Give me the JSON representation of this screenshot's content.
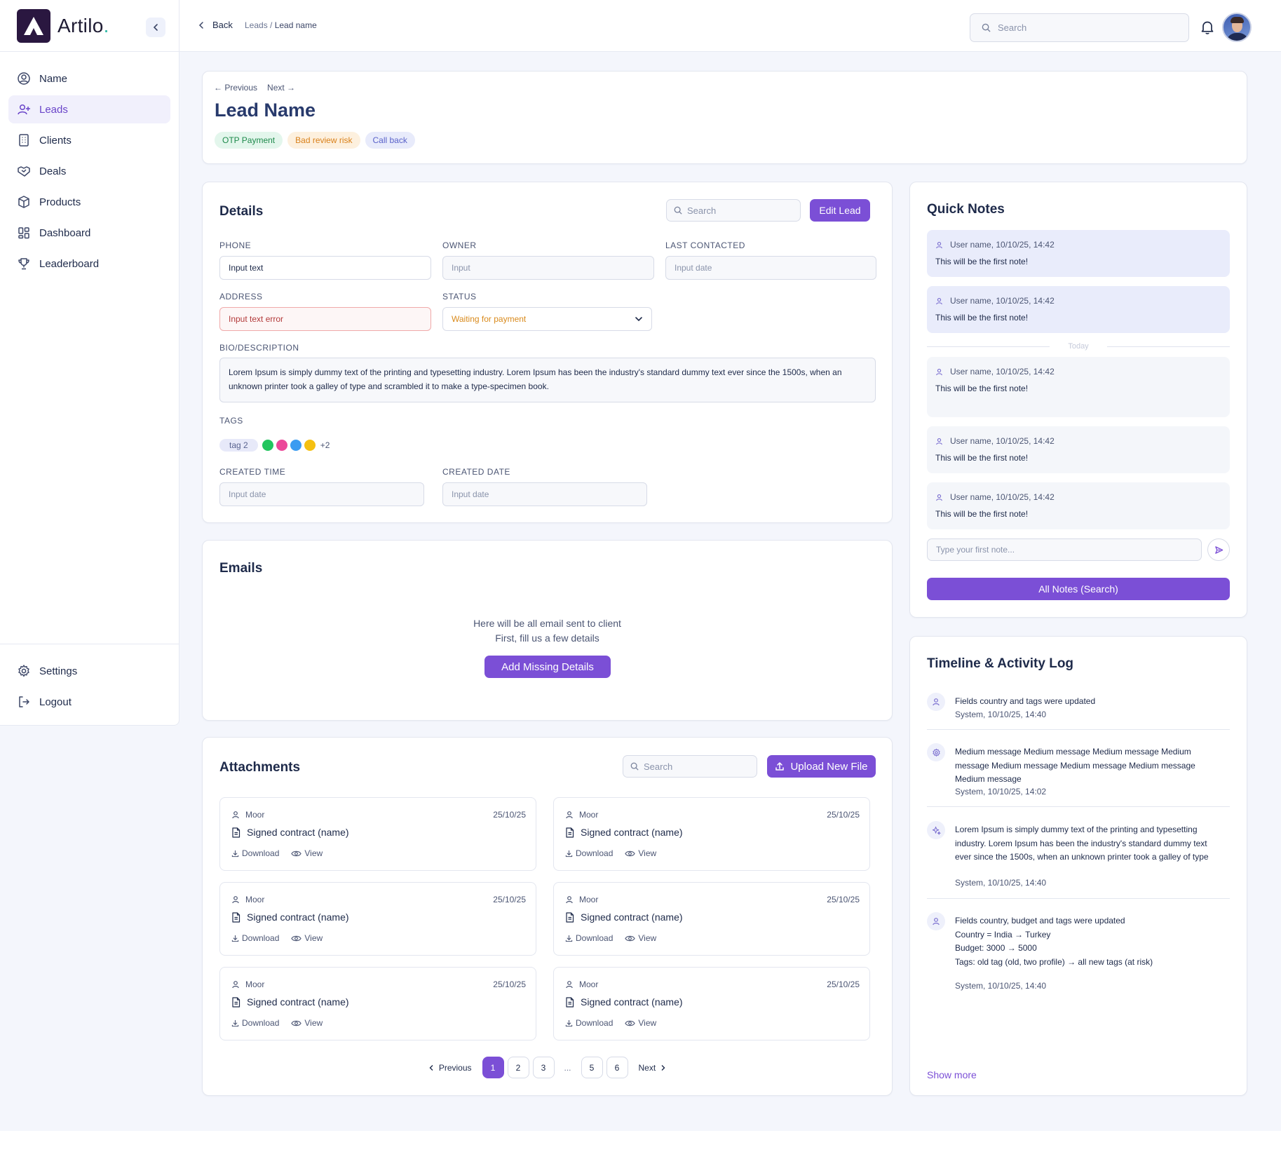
{
  "brand": {
    "name": "Artilo",
    "dot": "."
  },
  "sidebar": {
    "items": [
      {
        "label": "Name",
        "icon": "user-circle-icon"
      },
      {
        "label": "Leads",
        "icon": "user-plus-icon"
      },
      {
        "label": "Clients",
        "icon": "building-icon"
      },
      {
        "label": "Deals",
        "icon": "handshake-icon"
      },
      {
        "label": "Products",
        "icon": "box-icon"
      },
      {
        "label": "Dashboard",
        "icon": "grid-icon"
      },
      {
        "label": "Leaderboard",
        "icon": "trophy-icon"
      }
    ],
    "bottom": [
      {
        "label": "Settings",
        "icon": "gear-icon"
      },
      {
        "label": "Logout",
        "icon": "logout-icon"
      }
    ]
  },
  "header": {
    "back_label": "Back",
    "breadcrumb_parent": "Leads / ",
    "breadcrumb_current": "Lead name",
    "search_placeholder": "Search"
  },
  "lead": {
    "prev_label": "← Previous",
    "next_label": "Next →",
    "title": "Lead Name",
    "badges": [
      {
        "label": "OTP Payment",
        "bg": "#e3f6ec",
        "fg": "#1f8a4c"
      },
      {
        "label": "Bad review risk",
        "bg": "#fdf0de",
        "fg": "#d9801a"
      },
      {
        "label": "Call back",
        "bg": "#e8ebfb",
        "fg": "#5a62c9"
      }
    ]
  },
  "details": {
    "title": "Details",
    "search_placeholder": "Search",
    "edit_label": "Edit Lead",
    "phone_label": "PHONE",
    "phone_value": "Input text",
    "owner_label": "OWNER",
    "owner_placeholder": "Input",
    "last_contacted_label": "LAST CONTACTED",
    "last_contacted_placeholder": "Input date",
    "address_label": "ADDRESS",
    "address_value": "Input text error",
    "status_label": "STATUS",
    "status_value": "Waiting for payment",
    "bio_label": "BIO/DESCRIPTION",
    "bio_text": "Lorem Ipsum is simply dummy text of the printing and typesetting industry. Lorem Ipsum has been the industry's standard dummy text ever since the 1500s, when an unknown printer took a galley of type and scrambled it to make a type-specimen book.",
    "tags_label": "TAGS",
    "tag_pill": "tag 2",
    "tag_colors": [
      "#22c55e",
      "#ec4899",
      "#3b9cf1",
      "#f5c011"
    ],
    "tags_more": "+2",
    "created_time_label": "CREATED TIME",
    "created_time_placeholder": "Input date",
    "created_date_label": "CREATED DATE",
    "created_date_placeholder": "Input date"
  },
  "emails": {
    "title": "Emails",
    "line1": "Here will be all email sent to client",
    "line2": "First, fill us a few details",
    "button": "Add Missing Details"
  },
  "attachments": {
    "title": "Attachments",
    "search_placeholder": "Search",
    "upload_label": "Upload New File",
    "items": [
      {
        "user": "Moor",
        "date": "25/10/25",
        "name": "Signed contract (name)",
        "download": "Download",
        "view": "View"
      },
      {
        "user": "Moor",
        "date": "25/10/25",
        "name": "Signed contract (name)",
        "download": "Download",
        "view": "View"
      },
      {
        "user": "Moor",
        "date": "25/10/25",
        "name": "Signed contract (name)",
        "download": "Download",
        "view": "View"
      },
      {
        "user": "Moor",
        "date": "25/10/25",
        "name": "Signed contract (name)",
        "download": "Download",
        "view": "View"
      },
      {
        "user": "Moor",
        "date": "25/10/25",
        "name": "Signed contract (name)",
        "download": "Download",
        "view": "View"
      },
      {
        "user": "Moor",
        "date": "25/10/25",
        "name": "Signed contract (name)",
        "download": "Download",
        "view": "View"
      }
    ],
    "pager": {
      "prev": "Previous",
      "next": "Next",
      "pages": [
        "1",
        "2",
        "3",
        "...",
        "5",
        "6"
      ],
      "current": "1"
    }
  },
  "notes": {
    "title": "Quick Notes",
    "today_label": "Today",
    "items": [
      {
        "meta": "User name, 10/10/25, 14:42",
        "text": "This will be the first note!"
      },
      {
        "meta": "User name, 10/10/25, 14:42",
        "text": "This will be the first note!"
      },
      {
        "meta": "User name, 10/10/25, 14:42",
        "text": "This will be the first note!"
      },
      {
        "meta": "User name, 10/10/25, 14:42",
        "text": "This will be the first note!"
      },
      {
        "meta": "User name, 10/10/25, 14:42",
        "text": "This will be the first note!"
      }
    ],
    "input_placeholder": "Type your first note...",
    "all_label": "All Notes (Search)"
  },
  "timeline": {
    "title": "Timeline & Activity Log",
    "items": [
      {
        "icon": "user-icon",
        "lines": [
          "Fields country and tags were updated"
        ],
        "sys": "System, 10/10/25, 14:40"
      },
      {
        "icon": "gear-icon",
        "lines": [
          "Medium message Medium message Medium message Medium",
          "message Medium message Medium message Medium message",
          "Medium message"
        ],
        "sys": "System, 10/10/25, 14:02"
      },
      {
        "icon": "sparkle-icon",
        "lines": [
          "Lorem Ipsum is simply dummy text of the printing and typesetting",
          "industry. Lorem Ipsum has been the industry's standard dummy text",
          "ever since the 1500s, when an unknown printer took a galley of type"
        ],
        "sys": "System, 10/10/25, 14:40"
      },
      {
        "icon": "user-icon",
        "lines": [
          "Fields country, budget and tags were updated",
          "Country = India → Turkey",
          "Budget: 3000 → 5000",
          "Tags: old tag (old, two profile) → all new tags (at risk)"
        ],
        "sys": "System, 10/10/25, 14:40"
      }
    ],
    "show_more": "Show more"
  }
}
